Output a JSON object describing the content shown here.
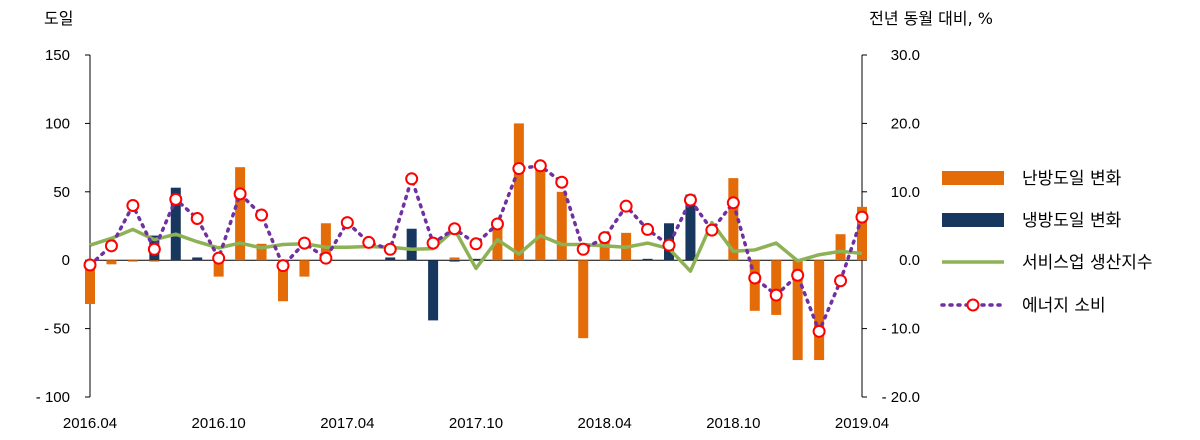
{
  "chart_data": {
    "type": "bar",
    "left_axis_title": "도일",
    "right_axis_title": "전년 동월 대비, %",
    "x": [
      "2016.04",
      "2016.05",
      "2016.06",
      "2016.07",
      "2016.08",
      "2016.09",
      "2016.10",
      "2016.11",
      "2016.12",
      "2017.01",
      "2017.02",
      "2017.03",
      "2017.04",
      "2017.05",
      "2017.06",
      "2017.07",
      "2017.08",
      "2017.09",
      "2017.10",
      "2017.11",
      "2017.12",
      "2018.01",
      "2018.02",
      "2018.03",
      "2018.04",
      "2018.05",
      "2018.06",
      "2018.07",
      "2018.08",
      "2018.09",
      "2018.10",
      "2018.11",
      "2018.12",
      "2019.01",
      "2019.02",
      "2019.03",
      "2019.04"
    ],
    "x_tick_labels": [
      "2016.04",
      "2016.10",
      "2017.04",
      "2017.10",
      "2018.04",
      "2018.10",
      "2019.04"
    ],
    "y_left_ticks": [
      "150",
      "100",
      "50",
      "0",
      "- 50",
      "- 100"
    ],
    "y_right_ticks": [
      "30.0",
      "20.0",
      "10.0",
      "0.0",
      "- 10.0",
      "- 20.0"
    ],
    "ylim_left": [
      -100,
      150
    ],
    "ylim_right": [
      -20,
      30
    ],
    "series": [
      {
        "name": "난방도일 변화",
        "kind": "bar",
        "axis": "left",
        "color": "#E36C09",
        "values": [
          -32,
          -3,
          -1,
          -1,
          0,
          0,
          -12,
          68,
          12,
          -30,
          -12,
          27,
          0,
          0,
          0,
          0,
          0,
          2,
          0,
          29,
          100,
          68,
          50,
          -57,
          15,
          20,
          0,
          0,
          0,
          0,
          60,
          -37,
          -40,
          -73,
          -73,
          19,
          39
        ]
      },
      {
        "name": "냉방도일 변화",
        "kind": "bar",
        "axis": "left",
        "color": "#17375E",
        "values": [
          0,
          0,
          0,
          18,
          53,
          2,
          0,
          0,
          0,
          0,
          0,
          0,
          0,
          0,
          2,
          23,
          -44,
          -1,
          1,
          0,
          0,
          0,
          0,
          0,
          0,
          0,
          1,
          27,
          48,
          0,
          0,
          0,
          0,
          0,
          0,
          0,
          0
        ]
      },
      {
        "name": "서비스업 생산지수",
        "kind": "line",
        "axis": "right",
        "color": "#8DB255",
        "values": [
          2.2,
          3.2,
          4.5,
          3.0,
          3.8,
          2.7,
          1.8,
          2.5,
          1.8,
          2.3,
          2.4,
          1.9,
          1.9,
          2.0,
          1.9,
          1.6,
          1.7,
          4.5,
          -1.2,
          3.0,
          0.9,
          3.6,
          2.3,
          2.3,
          2.1,
          1.9,
          2.5,
          1.7,
          -1.6,
          5.5,
          1.3,
          1.5,
          2.5,
          -0.1,
          0.8,
          1.3,
          1.0
        ]
      },
      {
        "name": "에너지 소비",
        "kind": "line",
        "axis": "right",
        "color": "#7030A0",
        "values": [
          -0.7,
          2.1,
          8.0,
          1.6,
          8.9,
          6.1,
          0.3,
          9.7,
          6.6,
          -0.8,
          2.5,
          0.3,
          5.5,
          2.6,
          1.6,
          11.9,
          2.5,
          4.6,
          2.4,
          5.3,
          13.4,
          13.8,
          11.4,
          1.6,
          3.3,
          7.9,
          4.5,
          2.2,
          8.8,
          4.4,
          8.4,
          -2.6,
          -5.1,
          -2.2,
          -10.4,
          -3.0,
          6.3
        ]
      }
    ],
    "grid": false,
    "legend_position": "right"
  }
}
